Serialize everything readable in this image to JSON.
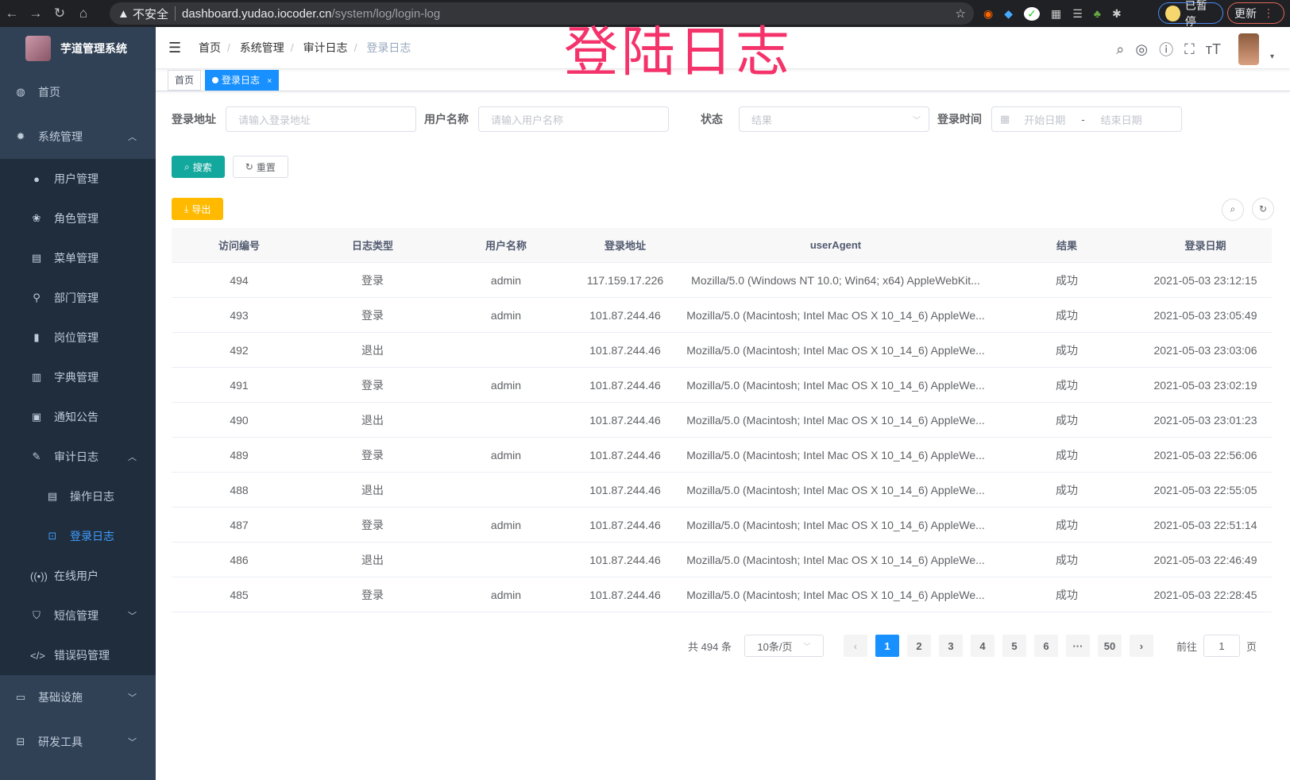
{
  "browser": {
    "url_warning": "不安全",
    "url_host": "dashboard.yudao.iocoder.cn",
    "url_path": "/system/log/login-log",
    "paused_label": "已暂停",
    "update_label": "更新"
  },
  "overlay_title": "登陆日志",
  "sidebar": {
    "title": "芋道管理系统",
    "items": [
      {
        "label": "首页",
        "icon": "dashboard-icon"
      },
      {
        "label": "系统管理",
        "icon": "gear-icon",
        "expanded": true,
        "children": [
          {
            "label": "用户管理",
            "icon": "user-icon"
          },
          {
            "label": "角色管理",
            "icon": "peoples-icon"
          },
          {
            "label": "菜单管理",
            "icon": "tree-table-icon"
          },
          {
            "label": "部门管理",
            "icon": "tree-icon"
          },
          {
            "label": "岗位管理",
            "icon": "post-icon"
          },
          {
            "label": "字典管理",
            "icon": "dict-icon"
          },
          {
            "label": "通知公告",
            "icon": "message-icon"
          },
          {
            "label": "审计日志",
            "icon": "log-icon",
            "expanded": true,
            "children": [
              {
                "label": "操作日志",
                "icon": "form-icon"
              },
              {
                "label": "登录日志",
                "icon": "logininfor-icon",
                "active": true
              }
            ]
          },
          {
            "label": "在线用户",
            "icon": "online-icon"
          },
          {
            "label": "短信管理",
            "icon": "validcode-icon"
          },
          {
            "label": "错误码管理",
            "icon": "code-icon"
          }
        ]
      },
      {
        "label": "基础设施",
        "icon": "monitor-icon"
      },
      {
        "label": "研发工具",
        "icon": "tool-icon"
      }
    ]
  },
  "breadcrumb": [
    "首页",
    "系统管理",
    "审计日志",
    "登录日志"
  ],
  "tags": [
    {
      "label": "首页"
    },
    {
      "label": "登录日志",
      "active": true
    }
  ],
  "filters": {
    "ip": {
      "label": "登录地址",
      "placeholder": "请输入登录地址"
    },
    "username": {
      "label": "用户名称",
      "placeholder": "请输入用户名称"
    },
    "status": {
      "label": "状态",
      "placeholder": "结果"
    },
    "time": {
      "label": "登录时间",
      "start": "开始日期",
      "sep": "-",
      "end": "结束日期"
    }
  },
  "buttons": {
    "search": "搜索",
    "reset": "重置",
    "export": "导出"
  },
  "table": {
    "columns": [
      "访问编号",
      "日志类型",
      "用户名称",
      "登录地址",
      "userAgent",
      "结果",
      "登录日期"
    ],
    "rows": [
      [
        "494",
        "登录",
        "admin",
        "117.159.17.226",
        "Mozilla/5.0 (Windows NT 10.0; Win64; x64) AppleWebKit...",
        "成功",
        "2021-05-03 23:12:15"
      ],
      [
        "493",
        "登录",
        "admin",
        "101.87.244.46",
        "Mozilla/5.0 (Macintosh; Intel Mac OS X 10_14_6) AppleWe...",
        "成功",
        "2021-05-03 23:05:49"
      ],
      [
        "492",
        "退出",
        "",
        "101.87.244.46",
        "Mozilla/5.0 (Macintosh; Intel Mac OS X 10_14_6) AppleWe...",
        "成功",
        "2021-05-03 23:03:06"
      ],
      [
        "491",
        "登录",
        "admin",
        "101.87.244.46",
        "Mozilla/5.0 (Macintosh; Intel Mac OS X 10_14_6) AppleWe...",
        "成功",
        "2021-05-03 23:02:19"
      ],
      [
        "490",
        "退出",
        "",
        "101.87.244.46",
        "Mozilla/5.0 (Macintosh; Intel Mac OS X 10_14_6) AppleWe...",
        "成功",
        "2021-05-03 23:01:23"
      ],
      [
        "489",
        "登录",
        "admin",
        "101.87.244.46",
        "Mozilla/5.0 (Macintosh; Intel Mac OS X 10_14_6) AppleWe...",
        "成功",
        "2021-05-03 22:56:06"
      ],
      [
        "488",
        "退出",
        "",
        "101.87.244.46",
        "Mozilla/5.0 (Macintosh; Intel Mac OS X 10_14_6) AppleWe...",
        "成功",
        "2021-05-03 22:55:05"
      ],
      [
        "487",
        "登录",
        "admin",
        "101.87.244.46",
        "Mozilla/5.0 (Macintosh; Intel Mac OS X 10_14_6) AppleWe...",
        "成功",
        "2021-05-03 22:51:14"
      ],
      [
        "486",
        "退出",
        "",
        "101.87.244.46",
        "Mozilla/5.0 (Macintosh; Intel Mac OS X 10_14_6) AppleWe...",
        "成功",
        "2021-05-03 22:46:49"
      ],
      [
        "485",
        "登录",
        "admin",
        "101.87.244.46",
        "Mozilla/5.0 (Macintosh; Intel Mac OS X 10_14_6) AppleWe...",
        "成功",
        "2021-05-03 22:28:45"
      ]
    ]
  },
  "pagination": {
    "total": "共 494 条",
    "page_size": "10条/页",
    "pages": [
      "1",
      "2",
      "3",
      "4",
      "5",
      "6",
      "···",
      "50"
    ],
    "current": "1",
    "goto_label": "前往",
    "goto_value": "1",
    "page_suffix": "页"
  },
  "colors": {
    "sidebar_bg": "#304156",
    "submenu_bg": "#1f2d3d",
    "primary": "#1890ff",
    "search_btn": "#13a89e",
    "export_btn": "#ffba00",
    "overlay": "#f5336b"
  }
}
